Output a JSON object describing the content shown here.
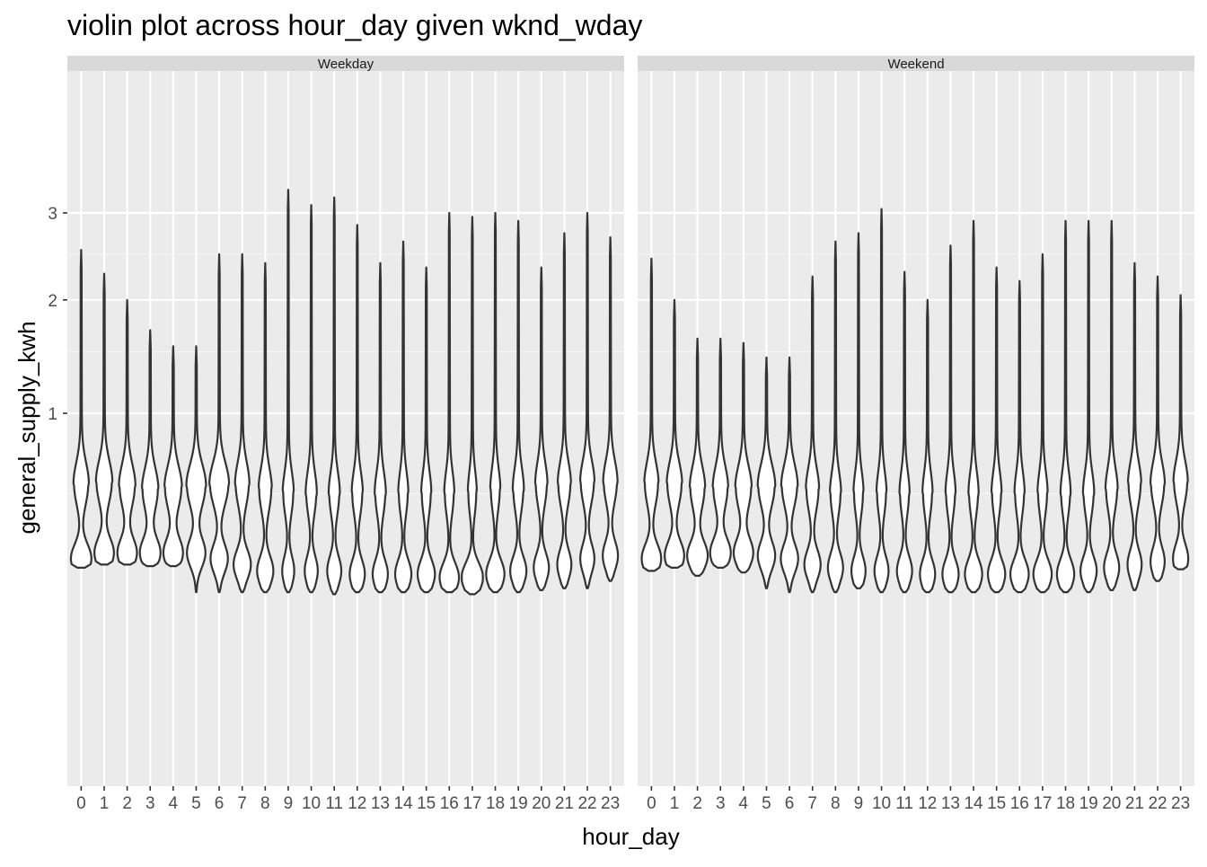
{
  "chart_data": {
    "type": "violin",
    "title": "violin plot across hour_day given wknd_wday",
    "xlabel": "hour_day",
    "ylabel": "general_supply_kwh",
    "y_scale": "sqrt",
    "ylim": [
      0.05,
      3.5
    ],
    "y_ticks": [
      1,
      2,
      3
    ],
    "y_tick_labels": [
      "1",
      "2",
      "3"
    ],
    "y_minor_grid": [
      0.5,
      1.5,
      2.5
    ],
    "grid": true,
    "categories": [
      "0",
      "1",
      "2",
      "3",
      "4",
      "5",
      "6",
      "7",
      "8",
      "9",
      "10",
      "11",
      "12",
      "13",
      "14",
      "15",
      "16",
      "17",
      "18",
      "19",
      "20",
      "21",
      "22",
      "23"
    ],
    "facets": [
      {
        "label": "Weekday",
        "violins": [
          {
            "min": 0.19,
            "max": 2.55,
            "lo_mode": 0.22,
            "hi_mode": 0.55,
            "lo_w": 0.95,
            "hi_w": 0.65
          },
          {
            "min": 0.2,
            "max": 2.28,
            "lo_mode": 0.24,
            "hi_mode": 0.56,
            "lo_w": 0.9,
            "hi_w": 0.7
          },
          {
            "min": 0.2,
            "max": 2.0,
            "lo_mode": 0.24,
            "hi_mode": 0.54,
            "lo_w": 0.9,
            "hi_w": 0.7
          },
          {
            "min": 0.195,
            "max": 1.7,
            "lo_mode": 0.24,
            "hi_mode": 0.52,
            "lo_w": 0.95,
            "hi_w": 0.7
          },
          {
            "min": 0.195,
            "max": 1.55,
            "lo_mode": 0.24,
            "hi_mode": 0.53,
            "lo_w": 0.9,
            "hi_w": 0.75
          },
          {
            "min": 0.12,
            "max": 1.55,
            "lo_mode": 0.24,
            "hi_mode": 0.54,
            "lo_w": 0.85,
            "hi_w": 0.85
          },
          {
            "min": 0.12,
            "max": 2.5,
            "lo_mode": 0.22,
            "hi_mode": 0.55,
            "lo_w": 0.8,
            "hi_w": 0.85
          },
          {
            "min": 0.12,
            "max": 2.5,
            "lo_mode": 0.2,
            "hi_mode": 0.55,
            "lo_w": 0.8,
            "hi_w": 0.6
          },
          {
            "min": 0.12,
            "max": 2.4,
            "lo_mode": 0.18,
            "hi_mode": 0.52,
            "lo_w": 0.75,
            "hi_w": 0.55
          },
          {
            "min": 0.12,
            "max": 3.3,
            "lo_mode": 0.18,
            "hi_mode": 0.5,
            "lo_w": 0.55,
            "hi_w": 0.45
          },
          {
            "min": 0.12,
            "max": 3.1,
            "lo_mode": 0.18,
            "hi_mode": 0.5,
            "lo_w": 0.6,
            "hi_w": 0.45
          },
          {
            "min": 0.115,
            "max": 3.2,
            "lo_mode": 0.18,
            "hi_mode": 0.5,
            "lo_w": 0.65,
            "hi_w": 0.45
          },
          {
            "min": 0.12,
            "max": 2.85,
            "lo_mode": 0.17,
            "hi_mode": 0.5,
            "lo_w": 0.7,
            "hi_w": 0.45
          },
          {
            "min": 0.12,
            "max": 2.4,
            "lo_mode": 0.17,
            "hi_mode": 0.5,
            "lo_w": 0.7,
            "hi_w": 0.45
          },
          {
            "min": 0.12,
            "max": 2.65,
            "lo_mode": 0.17,
            "hi_mode": 0.5,
            "lo_w": 0.75,
            "hi_w": 0.4
          },
          {
            "min": 0.12,
            "max": 2.35,
            "lo_mode": 0.17,
            "hi_mode": 0.5,
            "lo_w": 0.8,
            "hi_w": 0.4
          },
          {
            "min": 0.12,
            "max": 3.0,
            "lo_mode": 0.16,
            "hi_mode": 0.5,
            "lo_w": 0.9,
            "hi_w": 0.4
          },
          {
            "min": 0.115,
            "max": 2.95,
            "lo_mode": 0.16,
            "hi_mode": 0.5,
            "lo_w": 1.0,
            "hi_w": 0.35
          },
          {
            "min": 0.12,
            "max": 3.0,
            "lo_mode": 0.17,
            "hi_mode": 0.52,
            "lo_w": 0.85,
            "hi_w": 0.4
          },
          {
            "min": 0.12,
            "max": 2.9,
            "lo_mode": 0.18,
            "hi_mode": 0.52,
            "lo_w": 0.75,
            "hi_w": 0.45
          },
          {
            "min": 0.125,
            "max": 2.35,
            "lo_mode": 0.19,
            "hi_mode": 0.55,
            "lo_w": 0.7,
            "hi_w": 0.5
          },
          {
            "min": 0.13,
            "max": 2.75,
            "lo_mode": 0.2,
            "hi_mode": 0.55,
            "lo_w": 0.65,
            "hi_w": 0.55
          },
          {
            "min": 0.13,
            "max": 3.0,
            "lo_mode": 0.22,
            "hi_mode": 0.56,
            "lo_w": 0.65,
            "hi_w": 0.6
          },
          {
            "min": 0.15,
            "max": 2.7,
            "lo_mode": 0.23,
            "hi_mode": 0.56,
            "lo_w": 0.7,
            "hi_w": 0.6
          }
        ]
      },
      {
        "label": "Weekend",
        "violins": [
          {
            "min": 0.18,
            "max": 2.45,
            "lo_mode": 0.22,
            "hi_mode": 0.55,
            "lo_w": 0.9,
            "hi_w": 0.6
          },
          {
            "min": 0.19,
            "max": 2.0,
            "lo_mode": 0.23,
            "hi_mode": 0.55,
            "lo_w": 0.9,
            "hi_w": 0.65
          },
          {
            "min": 0.165,
            "max": 1.62,
            "lo_mode": 0.23,
            "hi_mode": 0.53,
            "lo_w": 0.95,
            "hi_w": 0.65
          },
          {
            "min": 0.19,
            "max": 1.62,
            "lo_mode": 0.24,
            "hi_mode": 0.53,
            "lo_w": 0.95,
            "hi_w": 0.65
          },
          {
            "min": 0.175,
            "max": 1.58,
            "lo_mode": 0.24,
            "hi_mode": 0.53,
            "lo_w": 0.9,
            "hi_w": 0.7
          },
          {
            "min": 0.13,
            "max": 1.45,
            "lo_mode": 0.23,
            "hi_mode": 0.54,
            "lo_w": 0.8,
            "hi_w": 0.75
          },
          {
            "min": 0.12,
            "max": 1.45,
            "lo_mode": 0.22,
            "hi_mode": 0.54,
            "lo_w": 0.8,
            "hi_w": 0.7
          },
          {
            "min": 0.12,
            "max": 2.25,
            "lo_mode": 0.2,
            "hi_mode": 0.52,
            "lo_w": 0.75,
            "hi_w": 0.55
          },
          {
            "min": 0.12,
            "max": 2.65,
            "lo_mode": 0.19,
            "hi_mode": 0.5,
            "lo_w": 0.7,
            "hi_w": 0.45
          },
          {
            "min": 0.13,
            "max": 2.75,
            "lo_mode": 0.18,
            "hi_mode": 0.5,
            "lo_w": 0.65,
            "hi_w": 0.4
          },
          {
            "min": 0.12,
            "max": 3.05,
            "lo_mode": 0.18,
            "hi_mode": 0.5,
            "lo_w": 0.65,
            "hi_w": 0.4
          },
          {
            "min": 0.12,
            "max": 2.3,
            "lo_mode": 0.18,
            "hi_mode": 0.5,
            "lo_w": 0.7,
            "hi_w": 0.4
          },
          {
            "min": 0.12,
            "max": 2.0,
            "lo_mode": 0.17,
            "hi_mode": 0.5,
            "lo_w": 0.7,
            "hi_w": 0.4
          },
          {
            "min": 0.12,
            "max": 2.6,
            "lo_mode": 0.17,
            "hi_mode": 0.5,
            "lo_w": 0.75,
            "hi_w": 0.4
          },
          {
            "min": 0.12,
            "max": 2.9,
            "lo_mode": 0.17,
            "hi_mode": 0.5,
            "lo_w": 0.8,
            "hi_w": 0.4
          },
          {
            "min": 0.12,
            "max": 2.35,
            "lo_mode": 0.17,
            "hi_mode": 0.5,
            "lo_w": 0.8,
            "hi_w": 0.4
          },
          {
            "min": 0.12,
            "max": 2.2,
            "lo_mode": 0.17,
            "hi_mode": 0.5,
            "lo_w": 0.85,
            "hi_w": 0.4
          },
          {
            "min": 0.12,
            "max": 2.5,
            "lo_mode": 0.17,
            "hi_mode": 0.5,
            "lo_w": 0.85,
            "hi_w": 0.4
          },
          {
            "min": 0.12,
            "max": 2.9,
            "lo_mode": 0.17,
            "hi_mode": 0.5,
            "lo_w": 0.8,
            "hi_w": 0.4
          },
          {
            "min": 0.12,
            "max": 2.9,
            "lo_mode": 0.18,
            "hi_mode": 0.5,
            "lo_w": 0.75,
            "hi_w": 0.45
          },
          {
            "min": 0.125,
            "max": 2.9,
            "lo_mode": 0.19,
            "hi_mode": 0.52,
            "lo_w": 0.7,
            "hi_w": 0.5
          },
          {
            "min": 0.125,
            "max": 2.4,
            "lo_mode": 0.2,
            "hi_mode": 0.55,
            "lo_w": 0.65,
            "hi_w": 0.55
          },
          {
            "min": 0.15,
            "max": 2.25,
            "lo_mode": 0.21,
            "hi_mode": 0.55,
            "lo_w": 0.65,
            "hi_w": 0.6
          },
          {
            "min": 0.185,
            "max": 2.05,
            "lo_mode": 0.22,
            "hi_mode": 0.56,
            "lo_w": 0.7,
            "hi_w": 0.6
          }
        ]
      }
    ]
  }
}
